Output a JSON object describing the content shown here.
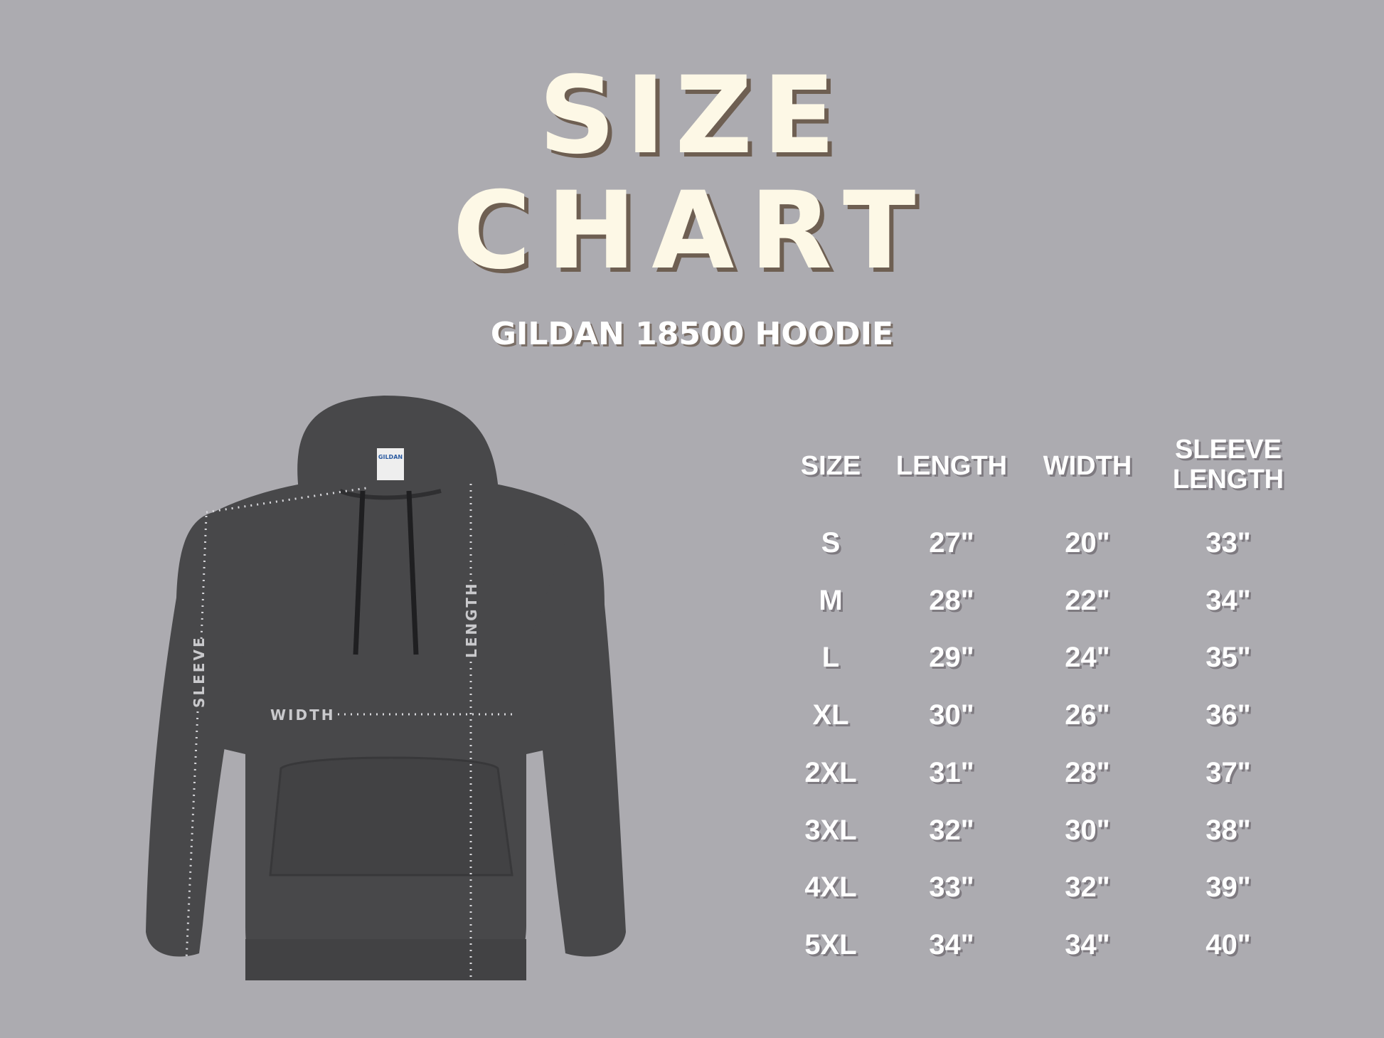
{
  "title_line1": "SIZE",
  "title_line2": "CHART",
  "subtitle": "GILDAN 18500 HOODIE",
  "colors": {
    "background": "#acabb0",
    "title": "#fdf8e6",
    "title_shadow": "#6e5f52",
    "hoodie": "#48484a"
  },
  "hoodie_labels": {
    "sleeve": "SLEEVE",
    "length": "LENGTH",
    "width": "WIDTH",
    "tag": "GILDAN"
  },
  "table": {
    "headers": [
      "SIZE",
      "LENGTH",
      "WIDTH",
      "SLEEVE\nLENGTH"
    ],
    "rows": [
      [
        "S",
        "27\"",
        "20\"",
        "33\""
      ],
      [
        "M",
        "28\"",
        "22\"",
        "34\""
      ],
      [
        "L",
        "29\"",
        "24\"",
        "35\""
      ],
      [
        "XL",
        "30\"",
        "26\"",
        "36\""
      ],
      [
        "2XL",
        "31\"",
        "28\"",
        "37\""
      ],
      [
        "3XL",
        "32\"",
        "30\"",
        "38\""
      ],
      [
        "4XL",
        "33\"",
        "32\"",
        "39\""
      ],
      [
        "5XL",
        "34\"",
        "34\"",
        "40\""
      ]
    ]
  }
}
